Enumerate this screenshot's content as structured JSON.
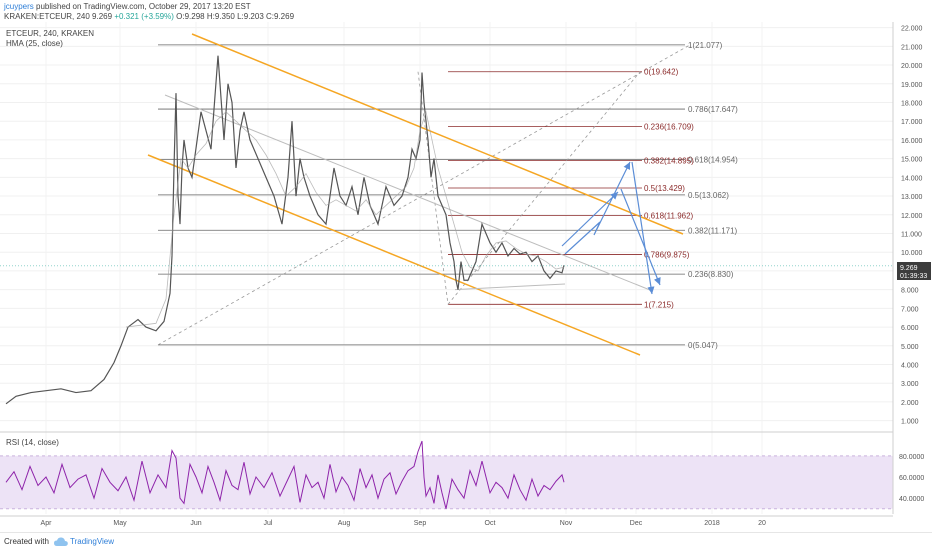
{
  "header": {
    "author": "jcuypers",
    "published_text": "published on TradingView.com, October 29, 2017 13:20 EST",
    "symbol_line": "KRAKEN:ETCEUR, 240",
    "last": "9.269",
    "change": "+0.321 (+3.59%)",
    "ohlc": "O:9.298 H:9.350 L:9.203 C:9.269"
  },
  "legend": {
    "symbol": "ETCEUR, 240, KRAKEN",
    "indicator": "HMA (25, close)",
    "rsi": "RSI (14, close)"
  },
  "price_badge": {
    "value": "9.269",
    "time": "01:39:33"
  },
  "colors": {
    "candle": "#555555",
    "channel": "#f5a623",
    "fib_retrace": "#8b2a2a",
    "fib_ext": "#666666",
    "projection": "#5b8dd6",
    "rsi_line": "#8e24aa",
    "rsi_band": "#ede3f6"
  },
  "chart_data": {
    "type": "line",
    "title": "ETCEUR, 240, KRAKEN",
    "x_axis": {
      "tick_labels": [
        "Apr",
        "May",
        "Jun",
        "Jul",
        "Aug",
        "Sep",
        "Oct",
        "Nov",
        "Dec",
        "2018",
        "20"
      ]
    },
    "y_axis": {
      "range": [
        0.5,
        22.3
      ],
      "tick_labels": [
        "1.000",
        "2.000",
        "3.000",
        "4.000",
        "5.000",
        "6.000",
        "7.000",
        "8.000",
        "9.000",
        "10.000",
        "11.000",
        "12.000",
        "13.000",
        "14.000",
        "15.000",
        "16.000",
        "17.000",
        "18.000",
        "19.000",
        "20.000",
        "21.000",
        "22.000"
      ]
    },
    "price_series": {
      "t": [
        0,
        10,
        25,
        40,
        55,
        70,
        85,
        98,
        108,
        115,
        122,
        132,
        140,
        150,
        158,
        164,
        166,
        168,
        170,
        172,
        174,
        176,
        178,
        182,
        186,
        195,
        205,
        212,
        218,
        222,
        226,
        230,
        234,
        238,
        244,
        252,
        260,
        268,
        276,
        282,
        286,
        290,
        294,
        298,
        304,
        312,
        320,
        328,
        334,
        340,
        346,
        352,
        358,
        364,
        372,
        380,
        388,
        396,
        402,
        406,
        410,
        414,
        416,
        418,
        420,
        422,
        425,
        428,
        432,
        436,
        440,
        444,
        448,
        450,
        452,
        455,
        458,
        462,
        466,
        470,
        476,
        480,
        484,
        490,
        496,
        502,
        508,
        514,
        520,
        526,
        532,
        538,
        544,
        550,
        556,
        558
      ],
      "v": [
        1.9,
        2.3,
        2.5,
        2.6,
        2.7,
        2.5,
        2.6,
        3.2,
        4.1,
        5.0,
        6.0,
        6.4,
        6.0,
        5.8,
        6.3,
        7.8,
        9.8,
        14.5,
        18.5,
        13.0,
        11.5,
        14.5,
        16.0,
        14.5,
        14.0,
        17.5,
        15.5,
        20.5,
        16.0,
        19.0,
        18.0,
        14.5,
        16.5,
        17.5,
        16.0,
        15.0,
        14.0,
        13.0,
        11.5,
        14.0,
        17.0,
        13.0,
        15.0,
        14.0,
        13.0,
        12.0,
        11.5,
        14.5,
        13.0,
        12.5,
        13.5,
        12.0,
        14.0,
        12.5,
        11.5,
        13.5,
        12.5,
        13.0,
        14.0,
        15.5,
        15.0,
        16.0,
        19.6,
        18.0,
        17.0,
        16.0,
        14.0,
        15.0,
        13.0,
        12.5,
        12.0,
        10.5,
        9.5,
        8.5,
        8.0,
        9.5,
        8.5,
        8.5,
        9.0,
        9.5,
        11.5,
        11.0,
        10.5,
        10.0,
        10.5,
        9.8,
        10.2,
        9.9,
        10.0,
        9.5,
        9.8,
        9.0,
        8.6,
        9.0,
        8.9,
        9.3
      ]
    },
    "hma_series": {
      "t": [
        120,
        150,
        160,
        168,
        175,
        182,
        190,
        200,
        210,
        220,
        230,
        240,
        250,
        260,
        270,
        280,
        290,
        300,
        310,
        320,
        330,
        340,
        350,
        360,
        370,
        380,
        390,
        400,
        408,
        414,
        420,
        426,
        432,
        440,
        448,
        456,
        464,
        472,
        480,
        490,
        500,
        510,
        520,
        530,
        540,
        550,
        558
      ],
      "v": [
        6.0,
        6.2,
        7.5,
        12.0,
        15.0,
        14.5,
        15.2,
        15.8,
        17.0,
        17.5,
        17.0,
        16.5,
        16.0,
        15.2,
        14.2,
        13.0,
        13.5,
        14.2,
        13.2,
        12.5,
        12.8,
        12.5,
        12.2,
        12.8,
        12.0,
        12.5,
        13.0,
        13.5,
        14.5,
        16.5,
        17.5,
        16.0,
        14.5,
        13.0,
        11.5,
        10.0,
        9.2,
        9.0,
        9.8,
        10.5,
        10.6,
        10.2,
        9.9,
        9.8,
        9.5,
        9.1,
        9.2
      ]
    },
    "rsi": {
      "range": [
        25,
        95
      ],
      "tick_labels": [
        "80.0000",
        "60.0000",
        "40.0000"
      ],
      "t": [
        0,
        8,
        16,
        24,
        32,
        40,
        48,
        56,
        64,
        72,
        80,
        88,
        96,
        104,
        112,
        120,
        128,
        136,
        144,
        152,
        160,
        166,
        170,
        174,
        178,
        184,
        190,
        196,
        202,
        208,
        214,
        220,
        226,
        232,
        238,
        244,
        250,
        258,
        266,
        274,
        282,
        288,
        294,
        300,
        306,
        312,
        318,
        324,
        330,
        336,
        342,
        348,
        354,
        360,
        366,
        372,
        378,
        384,
        390,
        396,
        402,
        408,
        412,
        416,
        418,
        420,
        424,
        428,
        432,
        436,
        440,
        446,
        452,
        458,
        464,
        470,
        476,
        480,
        484,
        490,
        496,
        502,
        508,
        514,
        520,
        526,
        532,
        538,
        544,
        550,
        556,
        558
      ],
      "v": [
        55,
        65,
        48,
        70,
        52,
        60,
        45,
        72,
        50,
        58,
        62,
        40,
        68,
        55,
        47,
        60,
        38,
        75,
        45,
        62,
        50,
        85,
        78,
        40,
        35,
        72,
        60,
        45,
        70,
        55,
        38,
        66,
        52,
        48,
        74,
        44,
        60,
        50,
        64,
        42,
        58,
        70,
        36,
        62,
        50,
        55,
        40,
        72,
        46,
        60,
        52,
        38,
        68,
        50,
        62,
        40,
        58,
        64,
        44,
        56,
        66,
        70,
        84,
        94,
        60,
        42,
        50,
        35,
        62,
        45,
        30,
        58,
        48,
        40,
        66,
        52,
        75,
        60,
        45,
        55,
        50,
        40,
        62,
        48,
        38,
        58,
        42,
        52,
        48,
        56,
        62,
        55
      ]
    },
    "fib_retracement": {
      "levels": [
        {
          "label": "0(19.642)",
          "value": 19.642
        },
        {
          "label": "0.236(16.709)",
          "value": 16.709
        },
        {
          "label": "0.382(14.895)",
          "value": 14.895
        },
        {
          "label": "0.5(13.429)",
          "value": 13.429
        },
        {
          "label": "0.618(11.962)",
          "value": 11.962
        },
        {
          "label": "0.786(9.875)",
          "value": 9.875
        },
        {
          "label": "1(7.215)",
          "value": 7.215
        }
      ]
    },
    "fib_extension": {
      "levels": [
        {
          "label": "1(21.077)",
          "value": 21.077
        },
        {
          "label": "0.786(17.647)",
          "value": 17.647
        },
        {
          "label": "0.618(14.954)",
          "value": 14.954
        },
        {
          "label": "0.5(13.062)",
          "value": 13.062
        },
        {
          "label": "0.382(11.171)",
          "value": 11.171
        },
        {
          "label": "0.236(8.830)",
          "value": 8.83
        },
        {
          "label": "0(5.047)",
          "value": 5.047
        }
      ]
    }
  },
  "footer": {
    "created": "Created with",
    "brand": "TradingView"
  }
}
